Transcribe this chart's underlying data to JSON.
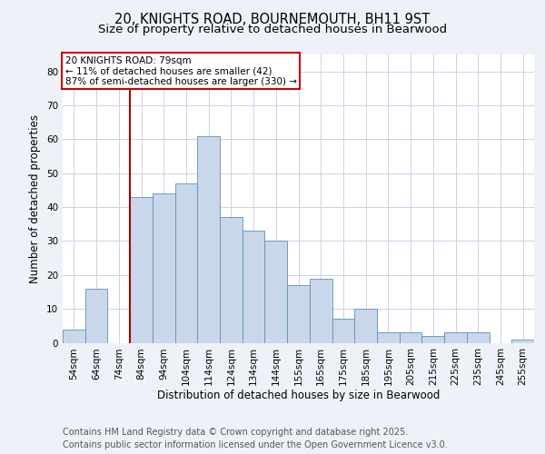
{
  "title_line1": "20, KNIGHTS ROAD, BOURNEMOUTH, BH11 9ST",
  "title_line2": "Size of property relative to detached houses in Bearwood",
  "xlabel": "Distribution of detached houses by size in Bearwood",
  "ylabel": "Number of detached properties",
  "footnote1": "Contains HM Land Registry data © Crown copyright and database right 2025.",
  "footnote2": "Contains public sector information licensed under the Open Government Licence v3.0.",
  "annotation_line1": "20 KNIGHTS ROAD: 79sqm",
  "annotation_line2": "← 11% of detached houses are smaller (42)",
  "annotation_line3": "87% of semi-detached houses are larger (330) →",
  "bar_labels": [
    "54sqm",
    "64sqm",
    "74sqm",
    "84sqm",
    "94sqm",
    "104sqm",
    "114sqm",
    "124sqm",
    "134sqm",
    "144sqm",
    "155sqm",
    "165sqm",
    "175sqm",
    "185sqm",
    "195sqm",
    "205sqm",
    "215sqm",
    "225sqm",
    "235sqm",
    "245sqm",
    "255sqm"
  ],
  "bar_values": [
    4,
    16,
    0,
    43,
    44,
    47,
    61,
    37,
    33,
    30,
    17,
    19,
    7,
    10,
    3,
    3,
    2,
    3,
    3,
    0,
    1
  ],
  "bar_color": "#c8d8ea",
  "bar_edge_color": "#6090b8",
  "vline_color": "#aa0000",
  "ylim": [
    0,
    85
  ],
  "yticks": [
    0,
    10,
    20,
    30,
    40,
    50,
    60,
    70,
    80
  ],
  "background_color": "#eef2f8",
  "plot_bg_color": "#ffffff",
  "grid_color": "#c8d4e4",
  "annotation_box_color": "#cc0000",
  "title_fontsize": 10.5,
  "subtitle_fontsize": 9.5,
  "axis_label_fontsize": 8.5,
  "tick_fontsize": 7.5,
  "annotation_fontsize": 7.5,
  "footnote_fontsize": 7.0
}
